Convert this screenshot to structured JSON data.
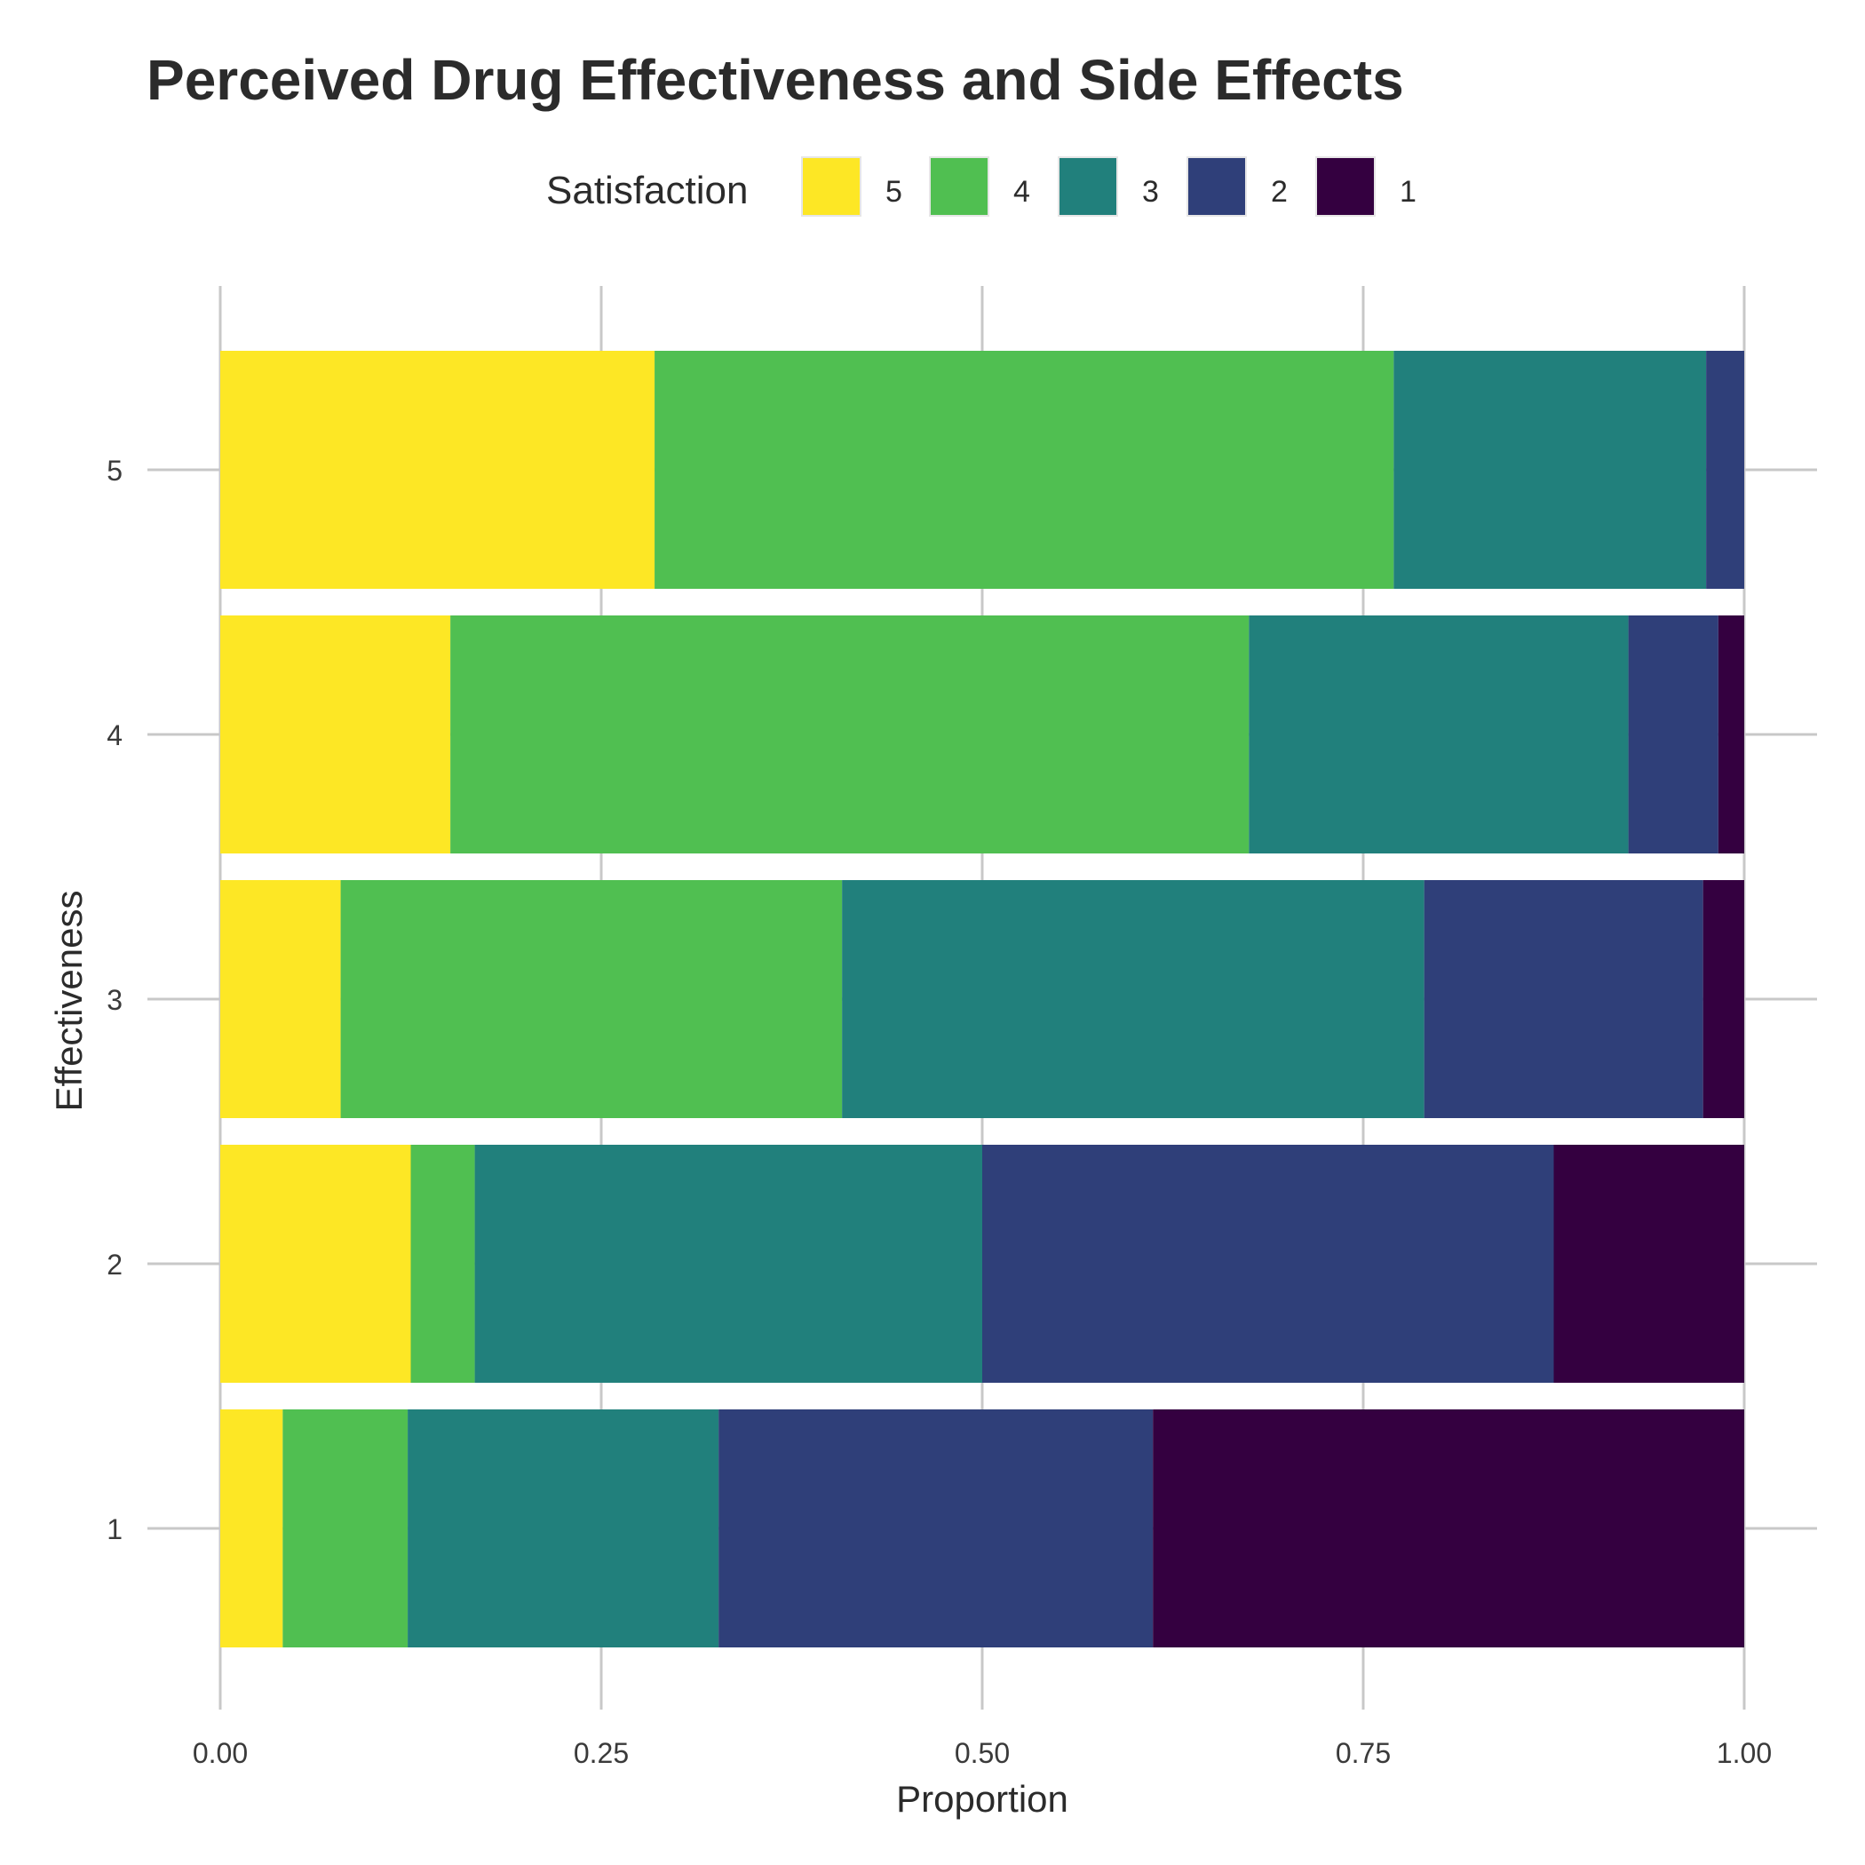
{
  "chart_data": {
    "type": "bar",
    "orientation": "horizontal",
    "stacked": "fill",
    "title": "Perceived Drug Effectiveness and Side Effects",
    "xlabel": "Proportion",
    "ylabel": "Effectiveness",
    "xlim": [
      0,
      1
    ],
    "x_ticks": [
      "0.00",
      "0.25",
      "0.50",
      "0.75",
      "1.00"
    ],
    "x_tick_values": [
      0,
      0.25,
      0.5,
      0.75,
      1.0
    ],
    "categories": [
      "1",
      "2",
      "3",
      "4",
      "5"
    ],
    "legend": {
      "title": "Satisfaction",
      "placement": "top"
    },
    "grid": true,
    "series": [
      {
        "name": "5",
        "color": "#FDE725",
        "values": [
          0.041,
          0.125,
          0.079,
          0.151,
          0.285
        ]
      },
      {
        "name": "4",
        "color": "#50BF51",
        "values": [
          0.082,
          0.042,
          0.329,
          0.524,
          0.485
        ]
      },
      {
        "name": "3",
        "color": "#21807C",
        "values": [
          0.204,
          0.333,
          0.382,
          0.249,
          0.205
        ]
      },
      {
        "name": "2",
        "color": "#2F3F79",
        "values": [
          0.285,
          0.375,
          0.183,
          0.059,
          0.025
        ]
      },
      {
        "name": "1",
        "color": "#340040",
        "values": [
          0.388,
          0.125,
          0.027,
          0.017,
          0.0
        ]
      }
    ]
  }
}
